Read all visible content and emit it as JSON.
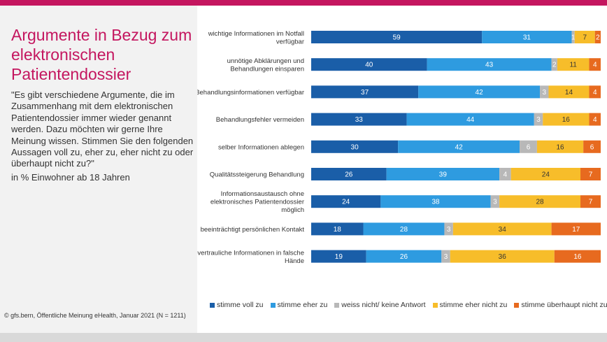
{
  "title": "Argumente in Bezug zum elektronischen Patientendossier",
  "question": "\"Es gibt verschiedene Argumente, die im Zusammenhang mit dem elektronischen Patientendossier immer wieder genannt werden. Dazu möchten wir gerne Ihre Meinung wissen. Stimmen Sie den folgenden Aussagen voll zu, eher zu, eher nicht zu oder überhaupt nicht zu?\"",
  "basis": "in % Einwohner ab 18 Jahren",
  "source": "© gfs.bern, Öffentliche Meinung eHealth, Januar 2021 (N = 1211)",
  "colors": {
    "accent": "#c4165f",
    "series": [
      "#1a5ea8",
      "#2e9be0",
      "#b8b8b8",
      "#f7bd2a",
      "#e76a1f"
    ],
    "label_text": [
      "#ffffff",
      "#ffffff",
      "#ffffff",
      "#333333",
      "#ffffff"
    ]
  },
  "chart_data": {
    "type": "bar",
    "orientation": "horizontal",
    "stacked": true,
    "categories": [
      [
        "wichtige Informationen im Notfall",
        "verfügbar"
      ],
      [
        "unnötige Abklärungen und",
        "Behandlungen einsparen"
      ],
      [
        "Behandlungsinformationen verfügbar"
      ],
      [
        "Behandlungsfehler vermeiden"
      ],
      [
        "selber Informationen ablegen"
      ],
      [
        "Qualitätssteigerung Behandlung"
      ],
      [
        "Informationsaustausch ohne",
        "elektronisches Patientendossier",
        "möglich"
      ],
      [
        "beeinträchtigt persönlichen Kontakt"
      ],
      [
        "vertrauliche Informationen in falsche",
        "Hände"
      ]
    ],
    "series": [
      {
        "name": "stimme voll zu",
        "values": [
          59,
          40,
          37,
          33,
          30,
          26,
          24,
          18,
          19
        ]
      },
      {
        "name": "stimme eher zu",
        "values": [
          31,
          43,
          42,
          44,
          42,
          39,
          38,
          28,
          26
        ]
      },
      {
        "name": "weiss nicht/ keine Antwort",
        "values": [
          1,
          2,
          3,
          3,
          6,
          4,
          3,
          3,
          3
        ]
      },
      {
        "name": "stimme eher nicht zu",
        "values": [
          7,
          11,
          14,
          16,
          16,
          24,
          28,
          34,
          36
        ]
      },
      {
        "name": "stimme überhaupt nicht zu",
        "values": [
          2,
          4,
          4,
          4,
          6,
          7,
          7,
          17,
          16
        ]
      }
    ],
    "xlim": [
      0,
      100
    ],
    "legend_position": "bottom"
  }
}
